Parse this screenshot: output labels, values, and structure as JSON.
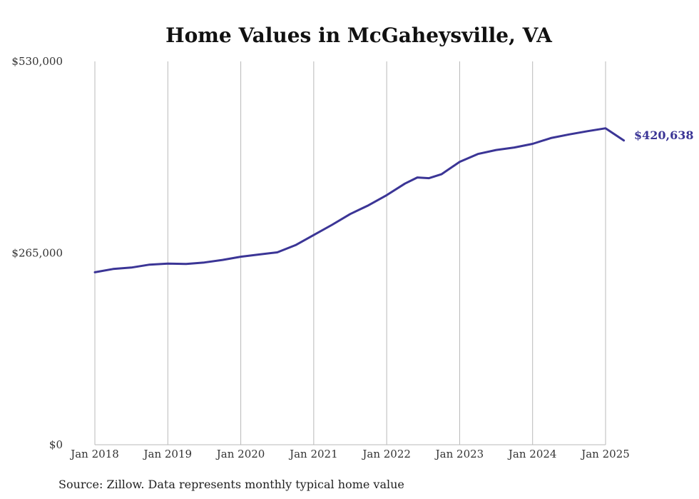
{
  "chart_data": {
    "type": "line",
    "title": "Home Values in McGaheysville, VA",
    "xlabel": "",
    "ylabel": "",
    "ylim": [
      0,
      530000
    ],
    "y_ticks": [
      {
        "value": 0,
        "label": "$0"
      },
      {
        "value": 265000,
        "label": "$265,000"
      },
      {
        "value": 530000,
        "label": "$530,000"
      }
    ],
    "x_ticks": [
      {
        "value": 2018.0,
        "label": "Jan 2018"
      },
      {
        "value": 2019.0,
        "label": "Jan 2019"
      },
      {
        "value": 2020.0,
        "label": "Jan 2020"
      },
      {
        "value": 2021.0,
        "label": "Jan 2021"
      },
      {
        "value": 2022.0,
        "label": "Jan 2022"
      },
      {
        "value": 2023.0,
        "label": "Jan 2023"
      },
      {
        "value": 2024.0,
        "label": "Jan 2024"
      },
      {
        "value": 2025.0,
        "label": "Jan 2025"
      }
    ],
    "xlim": [
      2018.0,
      2025.25
    ],
    "grid": "vertical",
    "line_color": "#3b3596",
    "end_label": "$420,638",
    "source": "Source: Zillow. Data represents monthly typical home value",
    "series": [
      {
        "points": [
          [
            2018.0,
            238500
          ],
          [
            2018.25,
            243000
          ],
          [
            2018.5,
            245000
          ],
          [
            2018.75,
            249000
          ],
          [
            2019.0,
            250500
          ],
          [
            2019.25,
            250000
          ],
          [
            2019.5,
            252000
          ],
          [
            2019.75,
            255500
          ],
          [
            2020.0,
            260000
          ],
          [
            2020.25,
            263000
          ],
          [
            2020.5,
            266000
          ],
          [
            2020.75,
            276000
          ],
          [
            2021.0,
            290000
          ],
          [
            2021.25,
            304000
          ],
          [
            2021.5,
            319000
          ],
          [
            2021.75,
            331000
          ],
          [
            2022.0,
            345000
          ],
          [
            2022.25,
            361000
          ],
          [
            2022.42,
            369500
          ],
          [
            2022.58,
            368500
          ],
          [
            2022.75,
            374000
          ],
          [
            2023.0,
            391000
          ],
          [
            2023.25,
            402000
          ],
          [
            2023.5,
            407500
          ],
          [
            2023.75,
            411000
          ],
          [
            2024.0,
            416000
          ],
          [
            2024.25,
            424000
          ],
          [
            2024.5,
            429000
          ],
          [
            2024.75,
            433500
          ],
          [
            2025.0,
            437500
          ],
          [
            2025.25,
            420638
          ]
        ]
      }
    ]
  }
}
